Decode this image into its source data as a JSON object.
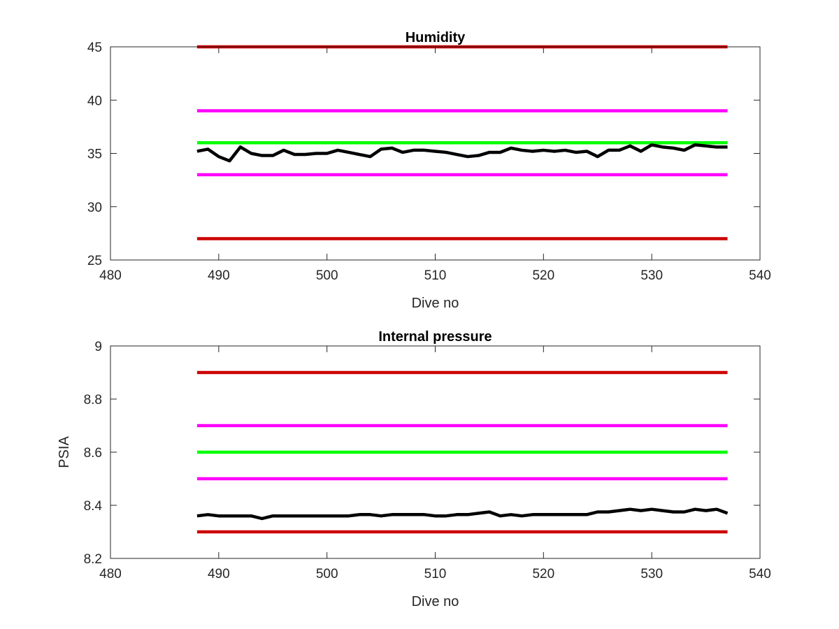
{
  "chart_data": [
    {
      "type": "line",
      "title": "Humidity",
      "xlabel": "Dive no",
      "ylabel": "",
      "xlim": [
        480,
        540
      ],
      "ylim": [
        25,
        45
      ],
      "xticks": [
        480,
        490,
        500,
        510,
        520,
        530,
        540
      ],
      "yticks": [
        25,
        30,
        35,
        40,
        45
      ],
      "tick_labels_x": [
        "480",
        "490",
        "500",
        "510",
        "520",
        "530",
        "540"
      ],
      "tick_labels_y": [
        "25",
        "30",
        "35",
        "40",
        "45"
      ],
      "grid": false,
      "thresholds": [
        {
          "y": 45,
          "x": [
            488,
            537
          ],
          "color": "#cc0000"
        },
        {
          "y": 39,
          "x": [
            488,
            537
          ],
          "color": "#ff00ff"
        },
        {
          "y": 36,
          "x": [
            488,
            537
          ],
          "color": "#00ff00"
        },
        {
          "y": 33,
          "x": [
            488,
            537
          ],
          "color": "#ff00ff"
        },
        {
          "y": 27,
          "x": [
            488,
            537
          ],
          "color": "#cc0000"
        }
      ],
      "series": [
        {
          "color": "#000000",
          "x": [
            488,
            489,
            490,
            491,
            492,
            493,
            494,
            495,
            496,
            497,
            498,
            499,
            500,
            501,
            502,
            503,
            504,
            505,
            506,
            507,
            508,
            509,
            510,
            511,
            512,
            513,
            514,
            515,
            516,
            517,
            518,
            519,
            520,
            521,
            522,
            523,
            524,
            525,
            526,
            527,
            528,
            529,
            530,
            531,
            532,
            533,
            534,
            535,
            536,
            537
          ],
          "y": [
            35.2,
            35.4,
            34.7,
            34.3,
            35.6,
            35.0,
            34.8,
            34.8,
            35.3,
            34.9,
            34.9,
            35.0,
            35.0,
            35.3,
            35.1,
            34.9,
            34.7,
            35.4,
            35.5,
            35.1,
            35.3,
            35.3,
            35.2,
            35.1,
            34.9,
            34.7,
            34.8,
            35.1,
            35.1,
            35.5,
            35.3,
            35.2,
            35.3,
            35.2,
            35.3,
            35.1,
            35.2,
            34.7,
            35.3,
            35.3,
            35.7,
            35.2,
            35.8,
            35.6,
            35.5,
            35.3,
            35.8,
            35.7,
            35.6,
            35.6
          ]
        }
      ]
    },
    {
      "type": "line",
      "title": "Internal pressure",
      "xlabel": "Dive no",
      "ylabel": "PSIA",
      "xlim": [
        480,
        540
      ],
      "ylim": [
        8.2,
        9.0
      ],
      "xticks": [
        480,
        490,
        500,
        510,
        520,
        530,
        540
      ],
      "yticks": [
        8.2,
        8.4,
        8.6,
        8.8,
        9.0
      ],
      "tick_labels_x": [
        "480",
        "490",
        "500",
        "510",
        "520",
        "530",
        "540"
      ],
      "tick_labels_y": [
        "8.2",
        "8.4",
        "8.6",
        "8.8",
        "9"
      ],
      "grid": false,
      "thresholds": [
        {
          "y": 8.9,
          "x": [
            488,
            537
          ],
          "color": "#cc0000"
        },
        {
          "y": 8.7,
          "x": [
            488,
            537
          ],
          "color": "#ff00ff"
        },
        {
          "y": 8.6,
          "x": [
            488,
            537
          ],
          "color": "#00ff00"
        },
        {
          "y": 8.5,
          "x": [
            488,
            537
          ],
          "color": "#ff00ff"
        },
        {
          "y": 8.3,
          "x": [
            488,
            537
          ],
          "color": "#cc0000"
        }
      ],
      "series": [
        {
          "color": "#000000",
          "x": [
            488,
            489,
            490,
            491,
            492,
            493,
            494,
            495,
            496,
            497,
            498,
            499,
            500,
            501,
            502,
            503,
            504,
            505,
            506,
            507,
            508,
            509,
            510,
            511,
            512,
            513,
            514,
            515,
            516,
            517,
            518,
            519,
            520,
            521,
            522,
            523,
            524,
            525,
            526,
            527,
            528,
            529,
            530,
            531,
            532,
            533,
            534,
            535,
            536,
            537
          ],
          "y": [
            8.36,
            8.365,
            8.36,
            8.36,
            8.36,
            8.36,
            8.35,
            8.36,
            8.36,
            8.36,
            8.36,
            8.36,
            8.36,
            8.36,
            8.36,
            8.365,
            8.365,
            8.36,
            8.365,
            8.365,
            8.365,
            8.365,
            8.36,
            8.36,
            8.365,
            8.365,
            8.37,
            8.375,
            8.36,
            8.365,
            8.36,
            8.365,
            8.365,
            8.365,
            8.365,
            8.365,
            8.365,
            8.375,
            8.375,
            8.38,
            8.385,
            8.38,
            8.385,
            8.38,
            8.375,
            8.375,
            8.385,
            8.38,
            8.385,
            8.37
          ]
        }
      ]
    }
  ]
}
